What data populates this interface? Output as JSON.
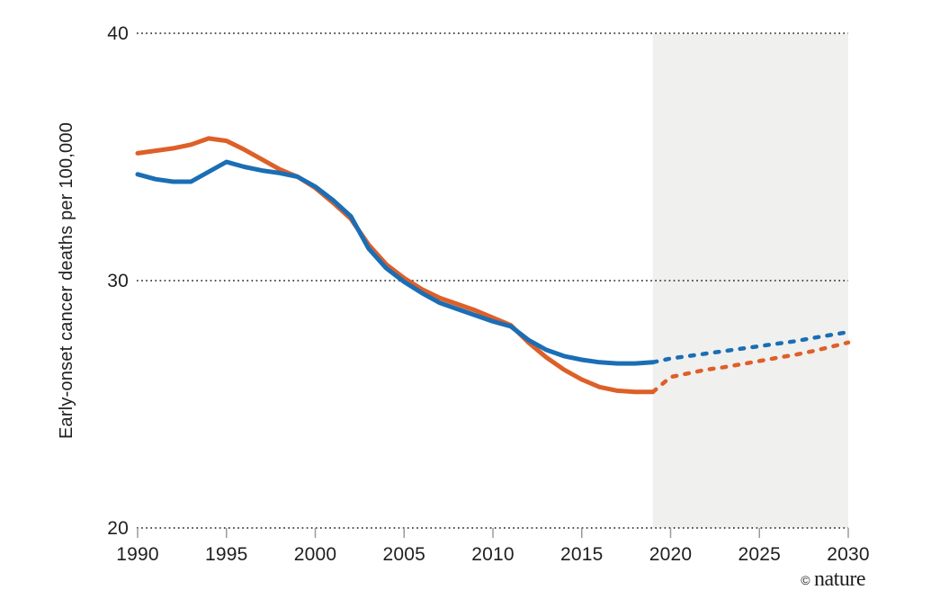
{
  "figure": {
    "watermark": {
      "symbol": "©",
      "brand": "nature",
      "color": "#b9b9b9"
    }
  },
  "chart_data": {
    "type": "line",
    "title": "",
    "xlabel": "",
    "ylabel": "Early-onset cancer deaths per 100,000",
    "xlim": [
      1990,
      2030
    ],
    "ylim": [
      20,
      40
    ],
    "x_ticks": [
      1990,
      1995,
      2000,
      2005,
      2010,
      2015,
      2020,
      2025,
      2030
    ],
    "y_ticks": [
      20,
      30,
      40
    ],
    "grid": "horizontal-dotted",
    "legend_position": "none",
    "projection_region": {
      "x_start": 2019,
      "x_end": 2030,
      "fill": "#f0f0ee"
    },
    "series": [
      {
        "id": "orange-line-observed",
        "name": "Orange series (observed)",
        "color": "#de5f28",
        "style": "solid",
        "x": [
          1990,
          1991,
          1992,
          1993,
          1994,
          1995,
          1996,
          1997,
          1998,
          1999,
          2000,
          2001,
          2002,
          2003,
          2004,
          2005,
          2006,
          2007,
          2008,
          2009,
          2010,
          2011,
          2012,
          2013,
          2014,
          2015,
          2016,
          2017,
          2018,
          2019
        ],
        "values": [
          35.15,
          35.25,
          35.35,
          35.5,
          35.75,
          35.65,
          35.3,
          34.9,
          34.5,
          34.2,
          33.75,
          33.15,
          32.5,
          31.45,
          30.65,
          30.1,
          29.65,
          29.3,
          29.05,
          28.8,
          28.5,
          28.2,
          27.5,
          26.9,
          26.4,
          26.0,
          25.7,
          25.55,
          25.5,
          25.5
        ]
      },
      {
        "id": "orange-line-projected",
        "name": "Orange series (projected)",
        "color": "#de5f28",
        "style": "dashed",
        "x": [
          2019,
          2020,
          2021,
          2022,
          2023,
          2024,
          2025,
          2026,
          2027,
          2028,
          2029,
          2030
        ],
        "values": [
          25.5,
          26.1,
          26.25,
          26.4,
          26.5,
          26.62,
          26.75,
          26.88,
          27.0,
          27.15,
          27.32,
          27.5
        ]
      },
      {
        "id": "blue-line-observed",
        "name": "Blue series (observed)",
        "color": "#1b6eb5",
        "style": "solid",
        "x": [
          1990,
          1991,
          1992,
          1993,
          1994,
          1995,
          1996,
          1997,
          1998,
          1999,
          2000,
          2001,
          2002,
          2003,
          2004,
          2005,
          2006,
          2007,
          2008,
          2009,
          2010,
          2011,
          2012,
          2013,
          2014,
          2015,
          2016,
          2017,
          2018,
          2019
        ],
        "values": [
          34.3,
          34.1,
          34.0,
          34.0,
          34.4,
          34.8,
          34.6,
          34.45,
          34.35,
          34.2,
          33.8,
          33.25,
          32.6,
          31.3,
          30.5,
          29.95,
          29.5,
          29.1,
          28.85,
          28.6,
          28.35,
          28.15,
          27.6,
          27.2,
          26.95,
          26.8,
          26.7,
          26.65,
          26.65,
          26.7
        ]
      },
      {
        "id": "blue-line-projected",
        "name": "Blue series (projected)",
        "color": "#1b6eb5",
        "style": "dashed",
        "x": [
          2019,
          2020,
          2021,
          2022,
          2023,
          2024,
          2025,
          2026,
          2027,
          2028,
          2029,
          2030
        ],
        "values": [
          26.7,
          26.85,
          26.95,
          27.05,
          27.15,
          27.25,
          27.35,
          27.45,
          27.55,
          27.68,
          27.8,
          27.92
        ]
      }
    ]
  }
}
